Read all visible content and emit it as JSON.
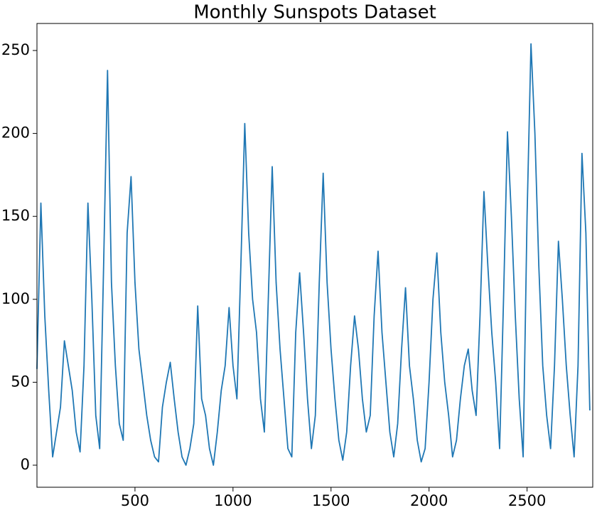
{
  "chart_data": {
    "type": "line",
    "title": "Monthly Sunspots Dataset",
    "x": [
      0,
      20,
      40,
      60,
      80,
      100,
      120,
      140,
      160,
      180,
      200,
      220,
      240,
      260,
      280,
      300,
      320,
      340,
      360,
      380,
      400,
      420,
      440,
      460,
      480,
      500,
      520,
      540,
      560,
      580,
      600,
      620,
      640,
      660,
      680,
      700,
      720,
      740,
      760,
      780,
      800,
      820,
      840,
      860,
      880,
      900,
      920,
      940,
      960,
      980,
      1000,
      1020,
      1040,
      1060,
      1080,
      1100,
      1120,
      1140,
      1160,
      1180,
      1200,
      1220,
      1240,
      1260,
      1280,
      1300,
      1320,
      1340,
      1360,
      1380,
      1400,
      1420,
      1440,
      1460,
      1480,
      1500,
      1520,
      1540,
      1560,
      1580,
      1600,
      1620,
      1640,
      1660,
      1680,
      1700,
      1720,
      1740,
      1760,
      1780,
      1800,
      1820,
      1840,
      1860,
      1880,
      1900,
      1920,
      1940,
      1960,
      1980,
      2000,
      2020,
      2040,
      2060,
      2080,
      2100,
      2120,
      2140,
      2160,
      2180,
      2200,
      2220,
      2240,
      2260,
      2280,
      2300,
      2320,
      2340,
      2360,
      2380,
      2400,
      2420,
      2440,
      2460,
      2480,
      2500,
      2520,
      2540,
      2560,
      2580,
      2600,
      2620,
      2640,
      2660,
      2680,
      2700,
      2720,
      2740,
      2760,
      2780,
      2800,
      2820
    ],
    "series": [
      {
        "color": "#1f77b4",
        "values": [
          58,
          158,
          90,
          45,
          5,
          20,
          35,
          75,
          60,
          45,
          20,
          8,
          60,
          158,
          100,
          30,
          10,
          120,
          238,
          110,
          60,
          25,
          15,
          140,
          174,
          110,
          70,
          50,
          30,
          15,
          5,
          2,
          35,
          50,
          62,
          40,
          20,
          5,
          0,
          10,
          25,
          96,
          40,
          30,
          10,
          0,
          20,
          45,
          60,
          95,
          60,
          40,
          120,
          206,
          140,
          100,
          80,
          40,
          20,
          100,
          180,
          110,
          70,
          40,
          10,
          5,
          80,
          116,
          80,
          40,
          10,
          30,
          110,
          176,
          110,
          70,
          40,
          15,
          3,
          20,
          60,
          90,
          70,
          40,
          20,
          30,
          90,
          129,
          80,
          50,
          20,
          5,
          25,
          70,
          107,
          60,
          40,
          15,
          2,
          10,
          50,
          100,
          128,
          80,
          50,
          30,
          5,
          15,
          40,
          60,
          70,
          45,
          30,
          90,
          165,
          120,
          80,
          50,
          10,
          100,
          201,
          150,
          90,
          40,
          5,
          150,
          254,
          200,
          120,
          60,
          30,
          10,
          60,
          135,
          100,
          60,
          30,
          5,
          60,
          188,
          140,
          33
        ]
      }
    ],
    "xlim": [
      0,
      2835
    ],
    "ylim": [
      -13.3,
      266.3
    ],
    "xticks": [
      500,
      1000,
      1500,
      2000,
      2500
    ],
    "yticks": [
      0,
      50,
      100,
      150,
      200,
      250
    ]
  }
}
